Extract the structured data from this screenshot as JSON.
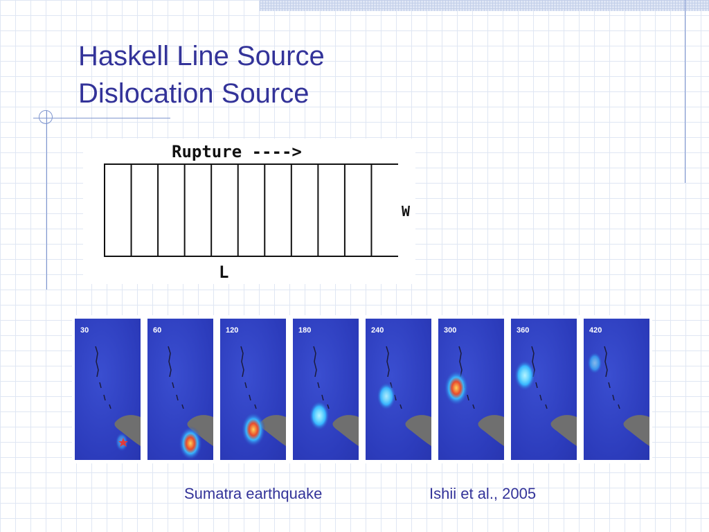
{
  "title": {
    "line1": "Haskell Line Source",
    "line2": "Dislocation Source"
  },
  "rupture_diagram": {
    "rupture_label": "Rupture ---->",
    "width_label": "W",
    "length_label": "L",
    "cell_count": 11
  },
  "snapshots": [
    {
      "label": "30",
      "intensity": 0.15
    },
    {
      "label": "60",
      "intensity": 0.9
    },
    {
      "label": "120",
      "intensity": 0.95
    },
    {
      "label": "180",
      "intensity": 0.7
    },
    {
      "label": "240",
      "intensity": 0.6
    },
    {
      "label": "300",
      "intensity": 1.0
    },
    {
      "label": "360",
      "intensity": 0.75
    },
    {
      "label": "420",
      "intensity": 0.3
    }
  ],
  "captions": {
    "left": "Sumatra earthquake",
    "right": "Ishii et al., 2005"
  },
  "colors": {
    "title": "#333399",
    "grid": "#dfe6f3",
    "accent_line": "#7e95cf",
    "panel_background": "#2c3cbc",
    "land": "#6f6f6f"
  }
}
